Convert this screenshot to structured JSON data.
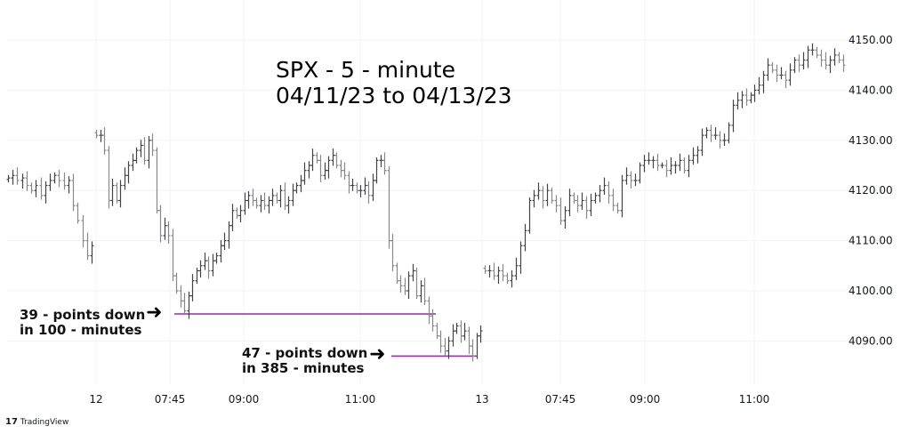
{
  "chart_data": {
    "type": "ohlc",
    "title": "SPX - 5 - minute",
    "subtitle": "04/11/23 to 04/13/23",
    "ylim": [
      4082,
      4153
    ],
    "y_ticks": [
      "4090.00",
      "4100.00",
      "4110.00",
      "4120.00",
      "4130.00",
      "4140.00",
      "4150.00"
    ],
    "x_ticks": [
      "12",
      "07:45",
      "09:00",
      "11:00",
      "13",
      "07:45",
      "09:00",
      "11:00"
    ],
    "grid": true,
    "bar_color": "#555555",
    "sessions": [
      {
        "closes": [
          4122.5,
          4123,
          4122,
          4122.5,
          4121,
          4120,
          4121,
          4119,
          4121,
          4122,
          4123,
          4122,
          4121,
          4122,
          4117,
          4114,
          4110,
          4107,
          4109
        ]
      },
      {
        "closes": [
          4131,
          4131,
          4128,
          4118,
          4121,
          4118,
          4121,
          4123,
          4125,
          4126,
          4128,
          4129,
          4126,
          4130,
          4128,
          4116,
          4111,
          4113,
          4111,
          4103,
          4100,
          4098,
          4096,
          4099,
          4102,
          4104,
          4105,
          4106,
          4104,
          4106,
          4107,
          4109,
          4110,
          4113,
          4116,
          4115,
          4116,
          4118,
          4119,
          4118,
          4117,
          4118,
          4117,
          4118,
          4119,
          4118,
          4120,
          4117,
          4118,
          4120,
          4121,
          4122,
          4124,
          4125,
          4127,
          4126,
          4123,
          4124,
          4126,
          4127,
          4125,
          4124,
          4123,
          4121,
          4121,
          4120,
          4120,
          4121,
          4119,
          4122,
          4126,
          4126,
          4124,
          4110,
          4105,
          4102,
          4101,
          4100,
          4103,
          4104,
          4099,
          4101,
          4098,
          4095,
          4093,
          4091,
          4089,
          4088,
          4090,
          4092,
          4093,
          4091,
          4092,
          4089,
          4087,
          4091,
          4092
        ]
      },
      {
        "closes": [
          4104,
          4104,
          4103,
          4104,
          4103,
          4102,
          4103,
          4105,
          4109,
          4112,
          4118,
          4119,
          4120,
          4118,
          4120,
          4118,
          4117,
          4114,
          4116,
          4119,
          4118,
          4117,
          4118,
          4116,
          4118,
          4119,
          4120,
          4121,
          4119,
          4117,
          4116,
          4122,
          4123,
          4122,
          4122,
          4125,
          4126,
          4126,
          4126,
          4125,
          4125,
          4124,
          4125,
          4125,
          4126,
          4124,
          4126,
          4127,
          4128,
          4131,
          4132,
          4131,
          4131,
          4130,
          4130,
          4133,
          4137,
          4138,
          4139,
          4138,
          4139,
          4140,
          4141,
          4143,
          4145,
          4144,
          4143,
          4143,
          4142,
          4144,
          4146,
          4145,
          4146,
          4148,
          4148,
          4147,
          4146,
          4145,
          4146,
          4147,
          4146,
          4145
        ]
      }
    ],
    "annotations": [
      {
        "line1": "39 - points down",
        "line2": "in 100 - minutes",
        "level": 4095.4,
        "line_color": "#9c27b0"
      },
      {
        "line1": "47 - points  down",
        "line2": "in 385 - minutes",
        "level": 4087,
        "line_color": "#9c27b0"
      }
    ]
  },
  "branding": {
    "logo_text": "TradingView"
  }
}
